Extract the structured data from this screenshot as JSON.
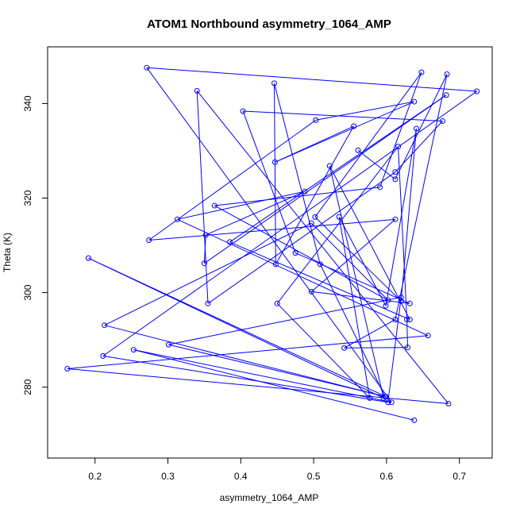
{
  "chart_data": {
    "type": "line",
    "title": "ATOM1 Northbound asymmetry_1064_AMP",
    "xlabel": "asymmetry_1064_AMP",
    "ylabel": "Theta (K)",
    "xlim": [
      0.135,
      0.745
    ],
    "ylim": [
      265,
      352
    ],
    "xticks": [
      0.2,
      0.3,
      0.4,
      0.5,
      0.6,
      0.7
    ],
    "xtick_labels": [
      "0.2",
      "0.3",
      "0.4",
      "0.5",
      "0.6",
      "0.7"
    ],
    "yticks": [
      280,
      300,
      320,
      340
    ],
    "ytick_labels": [
      "280",
      "300",
      "320",
      "340"
    ],
    "grid": false,
    "legend": "none",
    "color": "#0000ff",
    "marker": "open-circle",
    "series": [
      {
        "x": [
          0.638,
          0.253,
          0.607,
          0.271,
          0.724,
          0.211,
          0.602,
          0.62,
          0.301,
          0.599,
          0.191,
          0.596,
          0.522,
          0.632,
          0.385,
          0.682,
          0.35,
          0.352,
          0.488,
          0.313,
          0.657,
          0.162,
          0.685,
          0.34,
          0.355,
          0.612,
          0.677,
          0.403,
          0.475,
          0.632,
          0.497,
          0.612,
          0.274,
          0.503,
          0.638,
          0.447,
          0.555,
          0.448,
          0.446,
          0.509,
          0.598,
          0.213,
          0.497,
          0.602,
          0.364,
          0.591,
          0.648,
          0.502,
          0.62,
          0.641,
          0.599,
          0.535,
          0.577,
          0.45,
          0.616,
          0.628,
          0.629,
          0.542,
          0.612,
          0.683,
          0.612,
          0.561
        ],
        "y": [
          273.0,
          287.9,
          276.8,
          347.6,
          342.6,
          286.6,
          276.8,
          299.0,
          289.0,
          278.0,
          307.3,
          277.7,
          326.8,
          294.3,
          310.7,
          341.8,
          306.2,
          312.2,
          321.4,
          315.5,
          290.9,
          283.9,
          276.5,
          342.7,
          297.7,
          325.5,
          336.3,
          338.4,
          308.4,
          297.7,
          300.2,
          315.5,
          311.1,
          336.5,
          340.4,
          327.6,
          335.2,
          306.0,
          344.3,
          306.0,
          278.0,
          293.1,
          314.7,
          298.4,
          318.4,
          322.3,
          346.6,
          316.0,
          298.2,
          334.7,
          297.2,
          316.0,
          277.7,
          297.7,
          330.9,
          294.3,
          288.4,
          288.3,
          294.3,
          346.2,
          324.0,
          330.1
        ]
      }
    ]
  }
}
